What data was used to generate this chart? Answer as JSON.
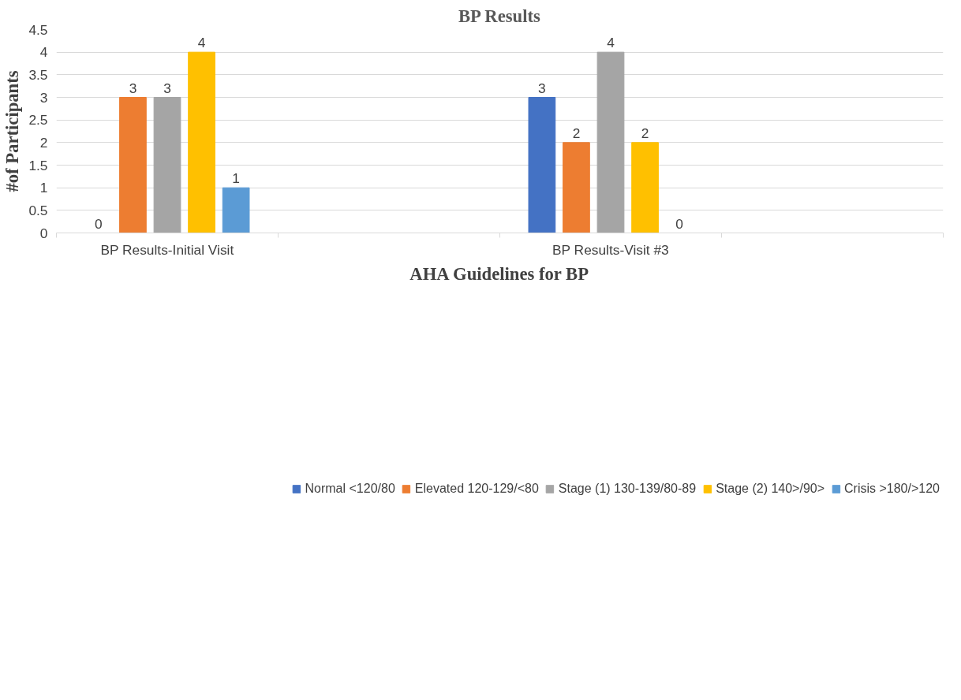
{
  "chart_data": {
    "type": "bar",
    "title": "BP Results",
    "xlabel": "AHA Guidelines for BP",
    "ylabel": "#of Participants",
    "categories": [
      "BP Results-Initial Visit",
      null,
      "BP Results-Visit #3",
      null
    ],
    "series": [
      {
        "name": "Normal <120/80",
        "color": "#4472c4",
        "values": [
          0,
          null,
          3,
          null
        ]
      },
      {
        "name": "Elevated 120-129/<80",
        "color": "#ed7d31",
        "values": [
          3,
          null,
          2,
          null
        ]
      },
      {
        "name": "Stage (1) 130-139/80-89",
        "color": "#a5a5a5",
        "values": [
          3,
          null,
          4,
          null
        ]
      },
      {
        "name": "Stage (2) 140>/90>",
        "color": "#ffc000",
        "values": [
          4,
          null,
          2,
          null
        ]
      },
      {
        "name": "Crisis >180/>120",
        "color": "#5b9bd5",
        "values": [
          1,
          null,
          0,
          null
        ]
      }
    ],
    "ylim": [
      0,
      4.5
    ],
    "yticks": [
      0,
      0.5,
      1,
      1.5,
      2,
      2.5,
      3,
      3.5,
      4,
      4.5
    ],
    "grid": "y",
    "legend": "bottom",
    "data_labels": true
  }
}
